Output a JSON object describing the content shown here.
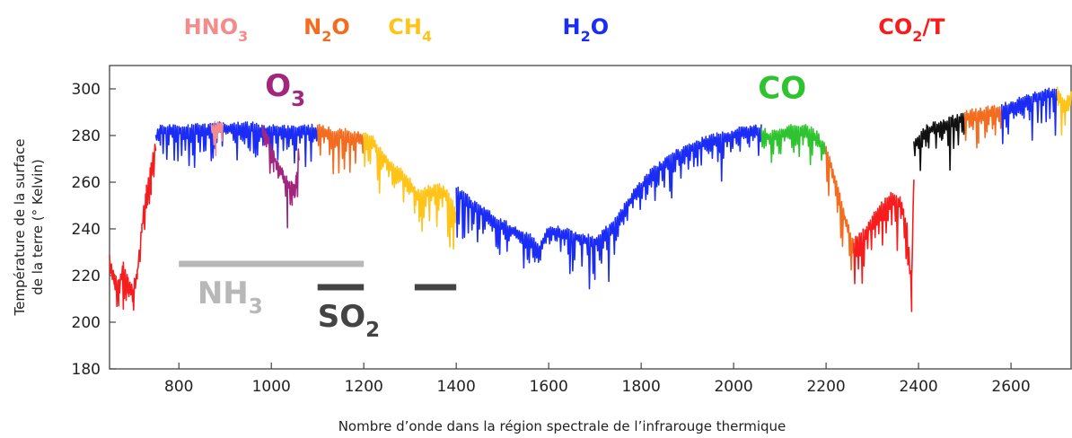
{
  "chart_data": {
    "type": "line",
    "xlabel": "Nombre d’onde dans la région spectrale de l’infrarouge thermique",
    "ylabel_line1": "Température de la surface",
    "ylabel_line2": "de la terre (° Kelvin)",
    "xlim": [
      650,
      2730
    ],
    "ylim": [
      180,
      310
    ],
    "x_ticks": [
      "800",
      "1000",
      "1200",
      "1400",
      "1600",
      "1800",
      "2000",
      "2200",
      "2400",
      "2600"
    ],
    "x_tick_values": [
      800,
      1000,
      1200,
      1400,
      1600,
      1800,
      2000,
      2200,
      2400,
      2600
    ],
    "y_ticks": [
      "180",
      "200",
      "220",
      "240",
      "260",
      "280",
      "300"
    ],
    "y_tick_values": [
      180,
      200,
      220,
      240,
      260,
      280,
      300
    ],
    "grid": false,
    "legend": "none",
    "top_species": [
      {
        "base": "HNO",
        "sub": "3",
        "suffix": "",
        "x": 880,
        "color": "#f58c8c"
      },
      {
        "base": "N",
        "sub": "2",
        "suffix": "O",
        "x": 1120,
        "color": "#f26d1f"
      },
      {
        "base": "CH",
        "sub": "4",
        "suffix": "",
        "x": 1300,
        "color": "#ffc417"
      },
      {
        "base": "H",
        "sub": "2",
        "suffix": "O",
        "x": 1680,
        "color": "#1a2cf5"
      },
      {
        "base": "CO",
        "sub": "2",
        "suffix": "/T",
        "x": 2385,
        "color": "#f51d1d"
      }
    ],
    "in_plot_species": [
      {
        "base": "O",
        "sub": "3",
        "x": 1030,
        "y": 297,
        "color": "#a0267e"
      },
      {
        "base": "CO",
        "sub": "",
        "x": 2105,
        "y": 296,
        "color": "#2fc42f"
      }
    ],
    "band_bars": [
      {
        "species": "NH3",
        "x_start": 800,
        "x_end": 1200,
        "y": 225,
        "color": "#b8b8b8"
      },
      {
        "species": "SO2",
        "x_start": 1100,
        "x_end": 1200,
        "y": 215,
        "color": "#444444"
      },
      {
        "species": "SO2",
        "x_start": 1310,
        "x_end": 1400,
        "y": 215,
        "color": "#444444"
      }
    ],
    "band_labels": [
      {
        "base": "NH",
        "sub": "3",
        "x": 840,
        "y": 208,
        "color": "#b8b8b8"
      },
      {
        "base": "SO",
        "sub": "2",
        "x": 1100,
        "y": 198,
        "color": "#444444"
      }
    ],
    "series": [
      {
        "color": "#f51d1d",
        "segments": [
          [
            650,
            750
          ]
        ],
        "points": [
          [
            650,
            225
          ],
          [
            660,
            218
          ],
          [
            670,
            215
          ],
          [
            680,
            222
          ],
          [
            690,
            217
          ],
          [
            700,
            212
          ],
          [
            710,
            220
          ],
          [
            720,
            240
          ],
          [
            730,
            255
          ],
          [
            740,
            265
          ],
          [
            750,
            275
          ]
        ]
      },
      {
        "color": "#1a2cf5",
        "segments": [
          [
            750,
            880
          ],
          [
            900,
            980
          ],
          [
            1060,
            1100
          ]
        ],
        "points": [
          [
            750,
            278
          ],
          [
            760,
            281
          ],
          [
            780,
            281
          ],
          [
            800,
            281
          ],
          [
            820,
            281
          ],
          [
            840,
            282
          ],
          [
            860,
            281
          ],
          [
            880,
            282
          ],
          [
            900,
            282
          ],
          [
            920,
            282
          ],
          [
            940,
            282
          ],
          [
            960,
            282
          ],
          [
            980,
            281
          ],
          [
            1060,
            280
          ],
          [
            1080,
            281
          ],
          [
            1100,
            281
          ]
        ]
      },
      {
        "color": "#f58c8c",
        "segments": [
          [
            870,
            895
          ]
        ],
        "points": [
          [
            870,
            282
          ],
          [
            880,
            282
          ],
          [
            895,
            282
          ]
        ]
      },
      {
        "color": "#a0267e",
        "segments": [
          [
            980,
            1060
          ]
        ],
        "points": [
          [
            980,
            281
          ],
          [
            995,
            276
          ],
          [
            1005,
            270
          ],
          [
            1015,
            265
          ],
          [
            1025,
            262
          ],
          [
            1035,
            258
          ],
          [
            1045,
            256
          ],
          [
            1050,
            255
          ],
          [
            1055,
            262
          ],
          [
            1060,
            275
          ]
        ]
      },
      {
        "color": "#f26d1f",
        "segments": [
          [
            1100,
            1200
          ]
        ],
        "points": [
          [
            1100,
            281
          ],
          [
            1120,
            280
          ],
          [
            1140,
            279
          ],
          [
            1160,
            279
          ],
          [
            1180,
            278
          ],
          [
            1200,
            277
          ]
        ]
      },
      {
        "color": "#ffc417",
        "segments": [
          [
            1200,
            1400
          ]
        ],
        "points": [
          [
            1200,
            279
          ],
          [
            1220,
            276
          ],
          [
            1240,
            270
          ],
          [
            1260,
            265
          ],
          [
            1280,
            262
          ],
          [
            1300,
            258
          ],
          [
            1310,
            255
          ],
          [
            1320,
            253
          ],
          [
            1340,
            255
          ],
          [
            1360,
            256
          ],
          [
            1380,
            254
          ],
          [
            1400,
            245
          ]
        ]
      },
      {
        "color": "#1a2cf5",
        "segments": [
          [
            1400,
            2060
          ]
        ],
        "points": [
          [
            1400,
            255
          ],
          [
            1440,
            248
          ],
          [
            1480,
            243
          ],
          [
            1520,
            238
          ],
          [
            1560,
            234
          ],
          [
            1580,
            230
          ],
          [
            1600,
            238
          ],
          [
            1650,
            236
          ],
          [
            1700,
            233
          ],
          [
            1740,
            240
          ],
          [
            1780,
            252
          ],
          [
            1820,
            262
          ],
          [
            1860,
            268
          ],
          [
            1900,
            273
          ],
          [
            1940,
            276
          ],
          [
            1980,
            278
          ],
          [
            2020,
            280
          ],
          [
            2060,
            281
          ]
        ]
      },
      {
        "color": "#2fc42f",
        "segments": [
          [
            2060,
            2200
          ]
        ],
        "points": [
          [
            2060,
            280
          ],
          [
            2080,
            278
          ],
          [
            2100,
            280
          ],
          [
            2120,
            281
          ],
          [
            2140,
            281
          ],
          [
            2160,
            281
          ],
          [
            2180,
            278
          ],
          [
            2200,
            272
          ]
        ]
      },
      {
        "color": "#f26d1f",
        "segments": [
          [
            2200,
            2260
          ]
        ],
        "points": [
          [
            2200,
            272
          ],
          [
            2215,
            263
          ],
          [
            2230,
            252
          ],
          [
            2245,
            240
          ],
          [
            2260,
            232
          ]
        ]
      },
      {
        "color": "#f51d1d",
        "segments": [
          [
            2260,
            2390
          ]
        ],
        "points": [
          [
            2260,
            232
          ],
          [
            2280,
            236
          ],
          [
            2300,
            242
          ],
          [
            2320,
            248
          ],
          [
            2340,
            252
          ],
          [
            2360,
            250
          ],
          [
            2375,
            240
          ],
          [
            2385,
            215
          ],
          [
            2390,
            262
          ]
        ]
      },
      {
        "color": "#111111",
        "segments": [
          [
            2390,
            2500
          ]
        ],
        "points": [
          [
            2390,
            275
          ],
          [
            2420,
            281
          ],
          [
            2450,
            283
          ],
          [
            2480,
            285
          ],
          [
            2500,
            287
          ]
        ]
      },
      {
        "color": "#f26d1f",
        "segments": [
          [
            2500,
            2580
          ]
        ],
        "points": [
          [
            2500,
            287
          ],
          [
            2530,
            288
          ],
          [
            2560,
            289
          ],
          [
            2580,
            289
          ]
        ]
      },
      {
        "color": "#1a2cf5",
        "segments": [
          [
            2580,
            2700
          ]
        ],
        "points": [
          [
            2580,
            290
          ],
          [
            2610,
            292
          ],
          [
            2640,
            294
          ],
          [
            2670,
            296
          ],
          [
            2700,
            297
          ]
        ]
      },
      {
        "color": "#ffc417",
        "segments": [
          [
            2700,
            2730
          ]
        ],
        "points": [
          [
            2700,
            297
          ],
          [
            2715,
            292
          ],
          [
            2730,
            295
          ]
        ]
      }
    ]
  }
}
